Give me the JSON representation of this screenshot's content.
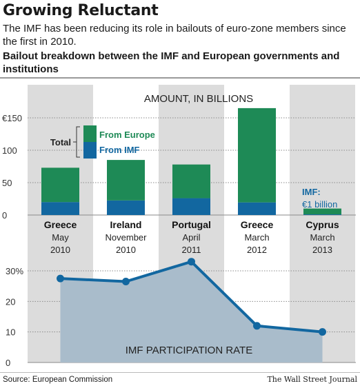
{
  "header": {
    "title": "Growing Reluctant",
    "subtitle": "The IMF has been reducing its role in bailouts of euro-zone members since the first in 2010.",
    "chart_heading": "Bailout breakdown between the IMF and European governments and institutions"
  },
  "footer": {
    "source": "Source: European Commission",
    "publisher": "The Wall Street Journal"
  },
  "colors": {
    "europe": "#1e8a56",
    "imf": "#1267a0",
    "band": "#dcdcdc",
    "area_fill": "#a9bccb",
    "line": "#1267a0"
  },
  "chart_data": [
    {
      "type": "bar",
      "stacked": true,
      "title": "AMOUNT, IN BILLIONS",
      "unit_prefix": "€",
      "categories": [
        {
          "country": "Greece",
          "month": "May",
          "year": "2010"
        },
        {
          "country": "Ireland",
          "month": "November",
          "year": "2010"
        },
        {
          "country": "Portugal",
          "month": "April",
          "year": "2011"
        },
        {
          "country": "Greece",
          "month": "March",
          "year": "2012"
        },
        {
          "country": "Cyprus",
          "month": "March",
          "year": "2013"
        }
      ],
      "series": [
        {
          "name": "From IMF",
          "values": [
            20,
            22.5,
            26,
            19.5,
            1
          ]
        },
        {
          "name": "From Europe",
          "values": [
            53,
            62.5,
            52,
            145.5,
            9
          ]
        }
      ],
      "legend": {
        "total_label": "Total",
        "europe_label": "From Europe",
        "imf_label": "From IMF"
      },
      "annotation": {
        "label": "IMF:",
        "value": "€1 billion"
      },
      "ylim": [
        0,
        170
      ],
      "yticks": [
        {
          "value": 0,
          "label": "0"
        },
        {
          "value": 50,
          "label": "50"
        },
        {
          "value": 100,
          "label": "100"
        },
        {
          "value": 150,
          "label": "€150"
        }
      ]
    },
    {
      "type": "area",
      "title": "IMF PARTICIPATION RATE",
      "values": [
        27.5,
        26.5,
        33,
        12,
        10
      ],
      "ylim": [
        0,
        35
      ],
      "yticks": [
        {
          "value": 0,
          "label": "0"
        },
        {
          "value": 10,
          "label": "10"
        },
        {
          "value": 20,
          "label": "20"
        },
        {
          "value": 30,
          "label": "30%"
        }
      ]
    }
  ]
}
